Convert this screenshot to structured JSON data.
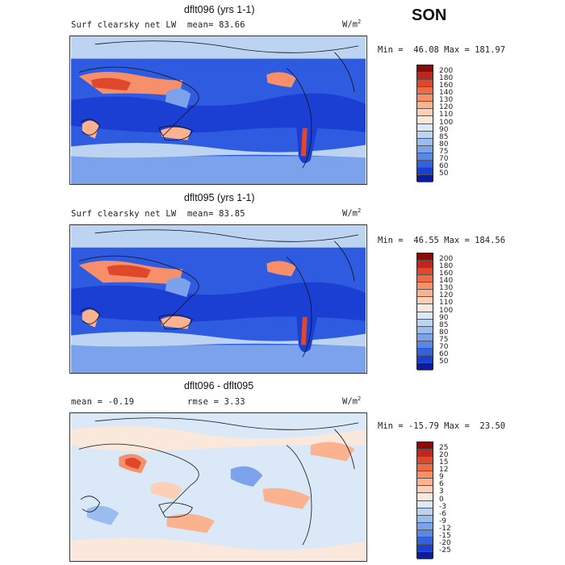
{
  "season": "SON",
  "panels": [
    {
      "title": "dflt096 (yrs 1-1)",
      "subtitle_left": "Surf clearsky net LW",
      "stat1": "mean=  83.66",
      "stat2": "",
      "units": "W/m",
      "units_exp": "2",
      "minmax": "Min =  46.08 Max = 181.97",
      "levels": [
        "200",
        "180",
        "160",
        "140",
        "130",
        "120",
        "110",
        "100",
        "90",
        "85",
        "80",
        "75",
        "70",
        "60",
        "50"
      ],
      "colors": [
        "#8b0a0a",
        "#c1261c",
        "#e0482c",
        "#f06a44",
        "#f7906a",
        "#fab28f",
        "#fccfb6",
        "#fbe8dd",
        "#dbe8f8",
        "#bcd3f2",
        "#9bbcee",
        "#7ba2ea",
        "#5a86e6",
        "#3362e0",
        "#1b3fd2",
        "#0a1c9c"
      ]
    },
    {
      "title": "dflt095 (yrs 1-1)",
      "subtitle_left": "Surf clearsky net LW",
      "stat1": "mean=  83.85",
      "stat2": "",
      "units": "W/m",
      "units_exp": "2",
      "minmax": "Min =  46.55 Max = 184.56",
      "levels": [
        "200",
        "180",
        "160",
        "140",
        "130",
        "120",
        "110",
        "100",
        "90",
        "85",
        "80",
        "75",
        "70",
        "60",
        "50"
      ],
      "colors": [
        "#8b0a0a",
        "#c1261c",
        "#e0482c",
        "#f06a44",
        "#f7906a",
        "#fab28f",
        "#fccfb6",
        "#fbe8dd",
        "#dbe8f8",
        "#bcd3f2",
        "#9bbcee",
        "#7ba2ea",
        "#5a86e6",
        "#3362e0",
        "#1b3fd2",
        "#0a1c9c"
      ]
    },
    {
      "title": "dflt096 - dflt095",
      "subtitle_left": "mean =  -0.19",
      "stat1": "rmse =   3.33",
      "stat2": "",
      "units": "W/m",
      "units_exp": "2",
      "minmax": "Min = -15.79 Max =  23.50",
      "levels": [
        "25",
        "20",
        "15",
        "12",
        "9",
        "6",
        "3",
        "0",
        "-3",
        "-6",
        "-9",
        "-12",
        "-15",
        "-20",
        "-25"
      ],
      "colors": [
        "#8b0a0a",
        "#c1261c",
        "#e0482c",
        "#f06a44",
        "#f7906a",
        "#fab28f",
        "#fccfb6",
        "#fbe8dd",
        "#dbe8f8",
        "#bcd3f2",
        "#9bbcee",
        "#7ba2ea",
        "#5a86e6",
        "#3362e0",
        "#1b3fd2",
        "#0a1c9c"
      ]
    }
  ]
}
